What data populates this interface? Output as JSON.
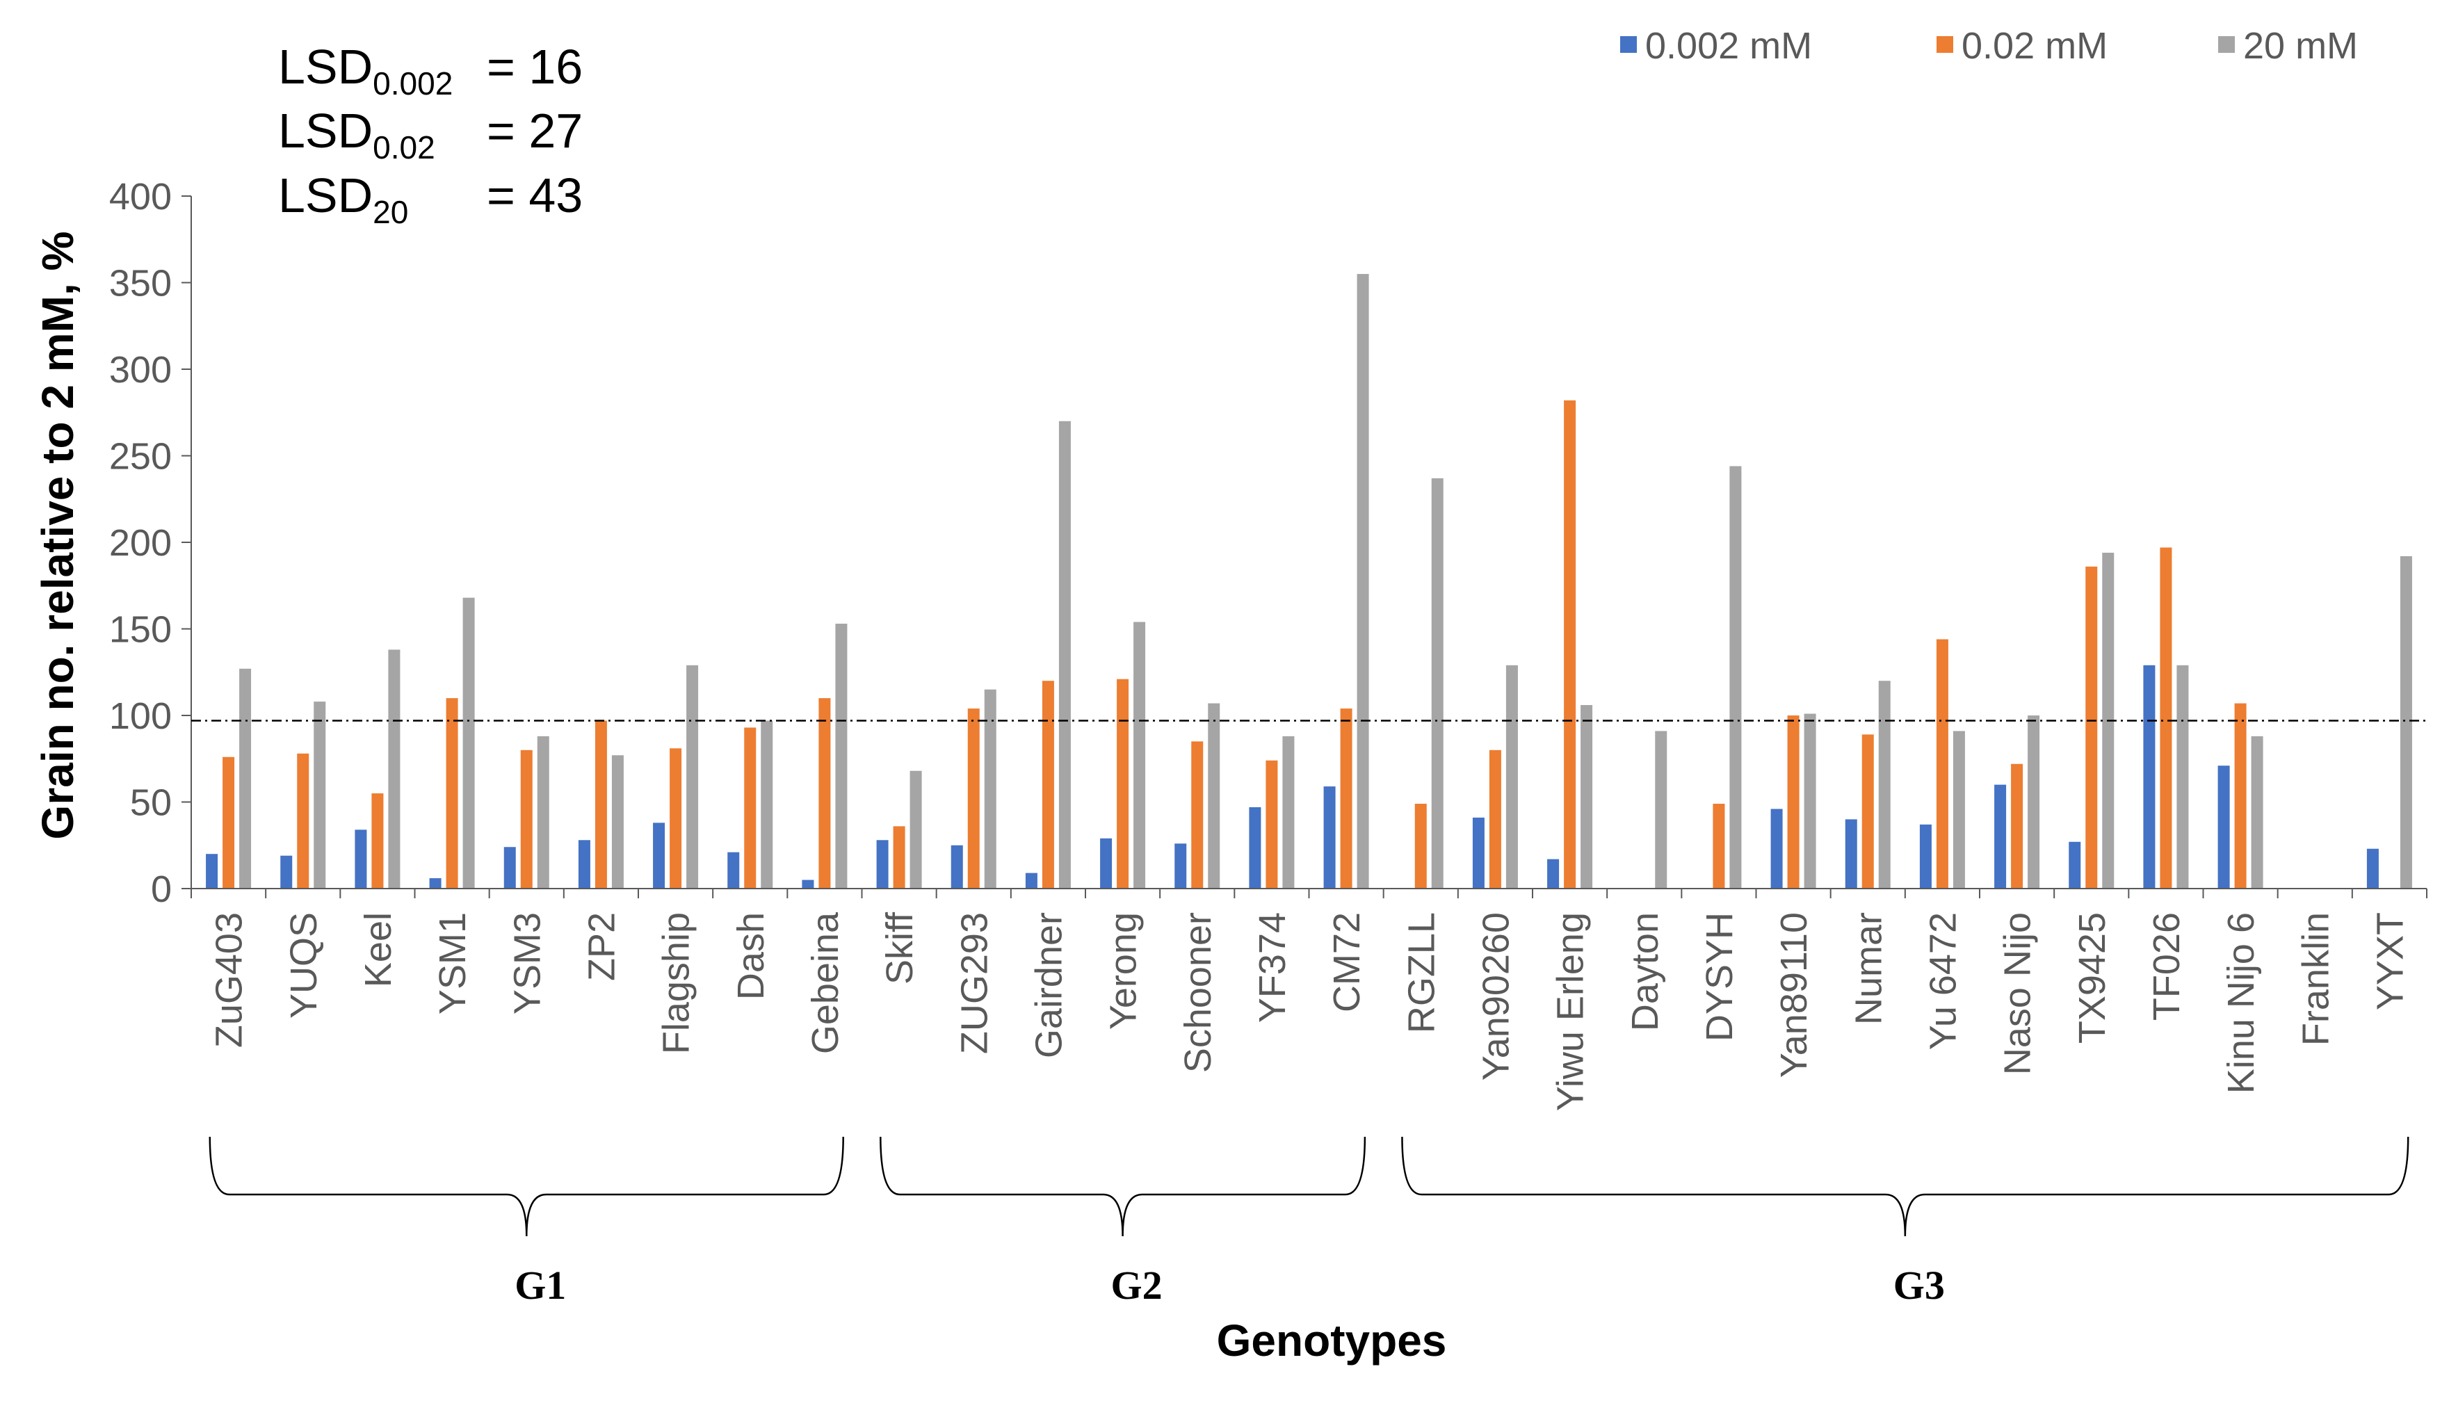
{
  "chart_data": {
    "type": "bar",
    "title": "",
    "xlabel": "Genotypes",
    "ylabel": "Grain no. relative to 2 mM, %",
    "ylim": [
      0,
      400
    ],
    "yticks": [
      "0",
      "50",
      "100",
      "150",
      "200",
      "250",
      "300",
      "350",
      "400"
    ],
    "reference_line": 97,
    "legend_position": "top-right",
    "categories": [
      "ZuG403",
      "YUQS",
      "Keel",
      "YSM1",
      "YSM3",
      "ZP2",
      "Flagship",
      "Dash",
      "Gebeina",
      "Skiff",
      "ZUG293",
      "Gairdner",
      "Yerong",
      "Schooner",
      "YF374",
      "CM72",
      "RGZLL",
      "Yan90260",
      "Yiwu Erleng",
      "Dayton",
      "DYSYH",
      "Yan89110",
      "Numar",
      "Yu 6472",
      "Naso Nijo",
      "TX9425",
      "TF026",
      "Kinu Nijo 6",
      "Franklin",
      "YYXT"
    ],
    "series": [
      {
        "name": "0.002 mM",
        "color": "#4472C4",
        "values": [
          20,
          19,
          34,
          6,
          24,
          28,
          38,
          21,
          5,
          28,
          25,
          9,
          29,
          26,
          47,
          59,
          0,
          41,
          17,
          0,
          0,
          46,
          40,
          37,
          60,
          27,
          129,
          71,
          0,
          23
        ]
      },
      {
        "name": "0.02 mM",
        "color": "#ED7D31",
        "values": [
          76,
          78,
          55,
          110,
          80,
          97,
          81,
          93,
          110,
          36,
          104,
          120,
          121,
          85,
          74,
          104,
          49,
          80,
          282,
          0,
          49,
          100,
          89,
          144,
          72,
          186,
          197,
          107,
          0,
          0
        ]
      },
      {
        "name": "20 mM",
        "color": "#A5A5A5",
        "values": [
          127,
          108,
          138,
          168,
          88,
          77,
          129,
          97,
          153,
          68,
          115,
          270,
          154,
          107,
          88,
          355,
          237,
          129,
          106,
          91,
          244,
          101,
          120,
          91,
          100,
          194,
          129,
          88,
          0,
          192
        ]
      }
    ],
    "groups": [
      {
        "label": "G1",
        "first": 0,
        "last": 8
      },
      {
        "label": "G2",
        "first": 9,
        "last": 15
      },
      {
        "label": "G3",
        "first": 16,
        "last": 29
      }
    ],
    "annotations": [
      {
        "label": "LSD",
        "sub": "0.002",
        "value": "= 16"
      },
      {
        "label": "LSD",
        "sub": "0.02",
        "value": "= 27"
      },
      {
        "label": "LSD",
        "sub": "20",
        "value": "= 43"
      }
    ]
  }
}
